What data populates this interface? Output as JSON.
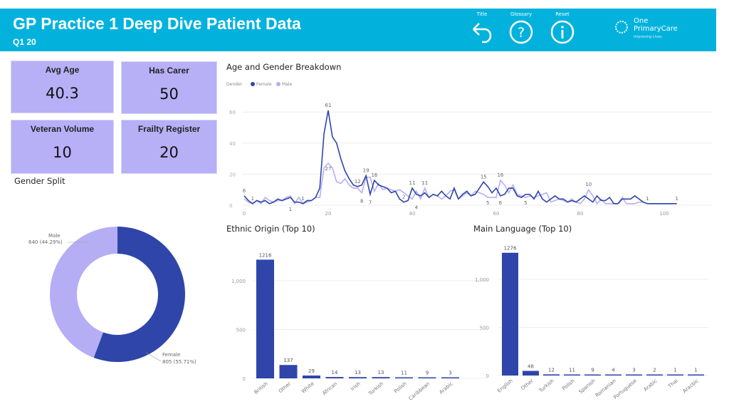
{
  "header": {
    "title": "GP Practice 1 Deep Dive Patient Data",
    "subtitle": "Q1 20",
    "buttons": [
      {
        "label": "Title",
        "icon": "back-arrow-icon"
      },
      {
        "label": "Glossary",
        "icon": "question-icon"
      },
      {
        "label": "Reset",
        "icon": "info-icon"
      }
    ],
    "logo": {
      "line1": "One",
      "line2": "PrimaryCare",
      "tagline": "Improving Lives"
    },
    "color": "#02b2dd"
  },
  "kpis": [
    {
      "label": "Avg Age",
      "value": "40.3"
    },
    {
      "label": "Has Carer",
      "value": "50"
    },
    {
      "label": "Veteran Volume",
      "value": "10"
    },
    {
      "label": "Frailty Register",
      "value": "20"
    }
  ],
  "colors": {
    "female": "#2f45a9",
    "male": "#b5aef5",
    "kpi": "#b7b0f7"
  },
  "chart_data": [
    {
      "type": "pie",
      "title": "Gender Split",
      "donut": true,
      "slices": [
        {
          "name": "Female",
          "value": 805,
          "label": "805 (55.71%)"
        },
        {
          "name": "Male",
          "value": 640,
          "label": "640 (44.29%)"
        }
      ]
    },
    {
      "type": "line",
      "title": "Age and Gender Breakdown",
      "legend_title": "Gender",
      "legend_position": "top-left",
      "grid": true,
      "xlim": [
        0,
        103
      ],
      "ylim": [
        0,
        65
      ],
      "xticks": [
        0,
        20,
        40,
        60,
        80,
        100
      ],
      "yticks": [
        0,
        20,
        40,
        60
      ],
      "series": [
        {
          "name": "Female",
          "values": [
            6,
            3,
            1,
            3,
            2,
            3,
            1,
            2,
            4,
            3,
            4,
            5,
            2,
            2,
            1,
            3,
            3,
            5,
            11,
            46,
            61,
            44,
            40,
            30,
            22,
            17,
            13,
            12,
            13,
            19,
            7,
            16,
            13,
            12,
            11,
            8,
            9,
            4,
            2,
            3,
            11,
            7,
            6,
            8,
            5,
            7,
            6,
            9,
            6,
            4,
            11,
            4,
            7,
            9,
            6,
            7,
            11,
            15,
            12,
            8,
            11,
            6,
            7,
            11,
            11,
            6,
            5,
            7,
            7,
            4,
            9,
            4,
            2,
            4,
            6,
            4,
            4,
            2,
            3,
            2,
            4,
            6,
            4,
            2,
            6,
            3,
            3,
            5,
            1,
            1,
            4,
            4,
            4,
            6,
            4,
            2,
            1,
            1,
            1,
            1,
            1,
            1,
            1,
            1
          ]
        },
        {
          "name": "Male",
          "values": [
            4,
            2,
            1,
            3,
            1,
            5,
            3,
            2,
            3,
            3,
            5,
            6,
            1,
            5,
            1,
            2,
            3,
            5,
            5,
            24,
            27,
            24,
            15,
            14,
            17,
            13,
            11,
            11,
            8,
            18,
            18,
            9,
            14,
            10,
            11,
            10,
            9,
            10,
            8,
            6,
            4,
            9,
            4,
            11,
            5,
            7,
            6,
            4,
            6,
            9,
            10,
            4,
            6,
            8,
            6,
            9,
            8,
            7,
            5,
            5,
            5,
            16,
            13,
            8,
            13,
            7,
            6,
            5,
            6,
            5,
            6,
            7,
            8,
            2,
            3,
            4,
            3,
            2,
            4,
            2,
            1,
            4,
            10,
            6,
            1,
            4,
            1,
            1,
            1,
            1,
            5,
            1,
            1,
            1,
            2,
            2,
            1
          ]
        }
      ],
      "annotations": [
        {
          "x": 0,
          "label": "6"
        },
        {
          "x": 2,
          "label": "1"
        },
        {
          "x": 11,
          "label": "1"
        },
        {
          "x": 14,
          "label": "1"
        },
        {
          "x": 20,
          "label": "61"
        },
        {
          "x": 20,
          "label": "27"
        },
        {
          "x": 27,
          "label": "12"
        },
        {
          "x": 28,
          "label": "8"
        },
        {
          "x": 29,
          "label": "19"
        },
        {
          "x": 30,
          "label": "7"
        },
        {
          "x": 31,
          "label": "16"
        },
        {
          "x": 38,
          "label": "2"
        },
        {
          "x": 40,
          "label": "11"
        },
        {
          "x": 41,
          "label": "4"
        },
        {
          "x": 43,
          "label": "11"
        },
        {
          "x": 57,
          "label": "15"
        },
        {
          "x": 58,
          "label": "5"
        },
        {
          "x": 61,
          "label": "16"
        },
        {
          "x": 61,
          "label": "6"
        },
        {
          "x": 67,
          "label": "5"
        },
        {
          "x": 82,
          "label": "10"
        },
        {
          "x": 96,
          "label": "1"
        },
        {
          "x": 103,
          "label": "1"
        }
      ]
    },
    {
      "type": "bar",
      "title": "Ethnic Origin (Top 10)",
      "ylim": [
        0,
        1250
      ],
      "yticks": [
        0,
        500,
        1000
      ],
      "ytick_labels": [
        "0",
        "500",
        "1,000"
      ],
      "categories": [
        "British",
        "Other",
        "White",
        "African",
        "Irish",
        "Turkish",
        "Polish",
        "Caribbean",
        "Arabic"
      ],
      "values": [
        1216,
        137,
        29,
        14,
        13,
        13,
        11,
        9,
        3
      ]
    },
    {
      "type": "bar",
      "title": "Main Language (Top 10)",
      "ylim": [
        0,
        1300
      ],
      "yticks": [
        0,
        500,
        1000
      ],
      "ytick_labels": [
        "0",
        "500",
        "1,000"
      ],
      "categories": [
        "English",
        "Other",
        "Turkish",
        "Polish",
        "Spanish",
        "Romanian",
        "Portuguese",
        "Arabic",
        "Thai",
        "Aracbic"
      ],
      "values": [
        1276,
        48,
        12,
        11,
        9,
        4,
        3,
        2,
        1,
        1
      ]
    }
  ]
}
